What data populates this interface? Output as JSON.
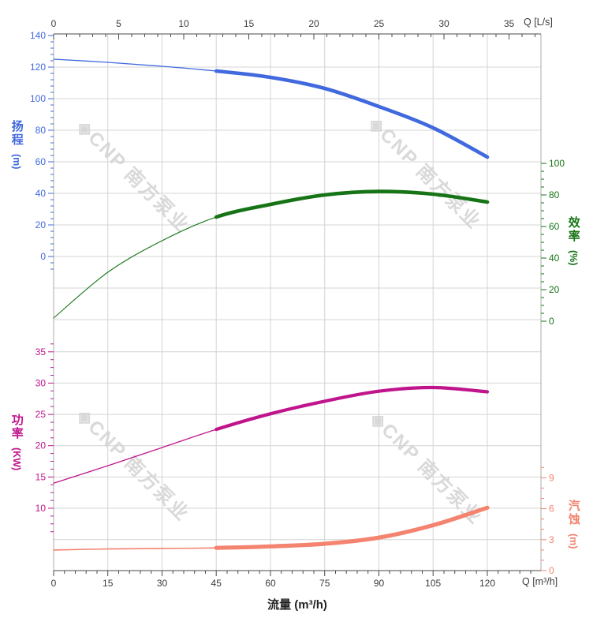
{
  "watermark": {
    "text": "◈CNP 南方泵业"
  },
  "colors": {
    "head": "#4169DF",
    "efficiency": "#167416",
    "power": "#C0148C",
    "npsh": "#F4836F",
    "grid": "#D4D4D4",
    "spine": "#ABABAB",
    "axis_dark": "#4A4A4A",
    "tick_text": "#3C3C3C",
    "watermark": "#D9D9D9",
    "background": "#FFFFFF"
  },
  "axes": {
    "top": {
      "unit_label": "Q [L/s]",
      "ticks": [
        0,
        5,
        10,
        15,
        20,
        25,
        30,
        35
      ]
    },
    "bottom": {
      "unit_label": "Q [m³/h]",
      "title": "流量 (m³/h)",
      "ticks": [
        0,
        15,
        30,
        45,
        60,
        75,
        90,
        105,
        120
      ]
    },
    "head": {
      "title": "扬程",
      "unit": "(m)",
      "ticks": [
        140,
        120,
        100,
        80,
        60,
        40,
        20,
        0
      ]
    },
    "efficiency": {
      "title": "效率",
      "unit": "(%)",
      "ticks": [
        100,
        80,
        60,
        40,
        20,
        0
      ]
    },
    "power": {
      "title": "功率",
      "unit": "(KW)",
      "ticks": [
        35,
        30,
        25,
        20,
        15,
        10
      ]
    },
    "npsh": {
      "title": "汽蚀",
      "unit": "(m)",
      "ticks": [
        9,
        6,
        3,
        0
      ]
    }
  },
  "chart_data": {
    "type": "line",
    "xlabel": "流量 (m³/h)",
    "x_top_label": "Q [L/s]",
    "grid": true,
    "legend": "none",
    "x": [
      0,
      15,
      30,
      45,
      60,
      75,
      90,
      105,
      120
    ],
    "x_range_bottom_m3h": [
      0,
      134.8
    ],
    "x_range_top_ls": [
      0,
      37.4
    ],
    "bold_segment_x_range": [
      45,
      120
    ],
    "series": [
      {
        "name": "扬程",
        "unit": "m",
        "color": "#4169DF",
        "axis_ticks_range": [
          0,
          140
        ],
        "values": [
          125,
          123,
          120.5,
          117.5,
          113.5,
          106.5,
          95,
          81.5,
          63
        ]
      },
      {
        "name": "效率",
        "unit": "%",
        "color": "#167416",
        "axis_ticks_range": [
          0,
          100
        ],
        "values": [
          2,
          31,
          51,
          66,
          74,
          80,
          82.2,
          80.5,
          75.5
        ]
      },
      {
        "name": "功率",
        "unit": "KW",
        "color": "#C0148C",
        "axis_ticks_range": [
          10,
          35
        ],
        "values": [
          14,
          16.8,
          19.7,
          22.6,
          25.1,
          27.1,
          28.7,
          29.3,
          28.6
        ]
      },
      {
        "name": "汽蚀",
        "unit": "m",
        "color": "#F4836F",
        "axis_ticks_range": [
          0,
          9
        ],
        "values": [
          2.0,
          2.1,
          2.15,
          2.2,
          2.35,
          2.6,
          3.2,
          4.4,
          6.1
        ]
      }
    ]
  }
}
